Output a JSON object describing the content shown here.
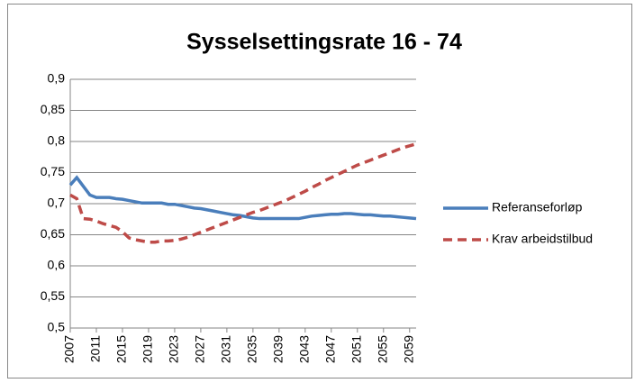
{
  "chart_data": {
    "type": "line",
    "title": "Sysselsettingsrate 16 - 74",
    "x": [
      2007,
      2008,
      2009,
      2010,
      2011,
      2012,
      2013,
      2014,
      2015,
      2016,
      2017,
      2018,
      2019,
      2020,
      2021,
      2022,
      2023,
      2024,
      2025,
      2026,
      2027,
      2028,
      2029,
      2030,
      2031,
      2032,
      2033,
      2034,
      2035,
      2036,
      2037,
      2038,
      2039,
      2040,
      2041,
      2042,
      2043,
      2044,
      2045,
      2046,
      2047,
      2048,
      2049,
      2050,
      2051,
      2052,
      2053,
      2054,
      2055,
      2056,
      2057,
      2058,
      2059,
      2060
    ],
    "series": [
      {
        "name": "Referanseforløp",
        "color": "#4a7ebb",
        "dash": false,
        "values": [
          0.73,
          0.742,
          0.728,
          0.714,
          0.71,
          0.71,
          0.71,
          0.708,
          0.707,
          0.705,
          0.703,
          0.701,
          0.701,
          0.701,
          0.701,
          0.699,
          0.699,
          0.697,
          0.695,
          0.693,
          0.692,
          0.69,
          0.688,
          0.686,
          0.684,
          0.682,
          0.681,
          0.679,
          0.677,
          0.676,
          0.676,
          0.676,
          0.676,
          0.676,
          0.676,
          0.676,
          0.678,
          0.68,
          0.681,
          0.682,
          0.683,
          0.683,
          0.684,
          0.684,
          0.683,
          0.682,
          0.682,
          0.681,
          0.68,
          0.68,
          0.679,
          0.678,
          0.677,
          0.676
        ]
      },
      {
        "name": "Krav arbeidstilbud",
        "color": "#be4b48",
        "dash": true,
        "values": [
          0.714,
          0.708,
          0.676,
          0.675,
          0.672,
          0.668,
          0.665,
          0.662,
          0.655,
          0.645,
          0.642,
          0.64,
          0.638,
          0.638,
          0.64,
          0.64,
          0.641,
          0.643,
          0.646,
          0.65,
          0.654,
          0.658,
          0.662,
          0.666,
          0.67,
          0.674,
          0.678,
          0.682,
          0.686,
          0.689,
          0.693,
          0.697,
          0.701,
          0.705,
          0.71,
          0.715,
          0.72,
          0.726,
          0.731,
          0.737,
          0.742,
          0.747,
          0.752,
          0.757,
          0.762,
          0.766,
          0.77,
          0.774,
          0.778,
          0.782,
          0.786,
          0.79,
          0.793,
          0.796
        ]
      }
    ],
    "xlim": [
      2007,
      2060
    ],
    "xticks": [
      2007,
      2011,
      2015,
      2019,
      2023,
      2027,
      2031,
      2035,
      2039,
      2043,
      2047,
      2051,
      2055,
      2059
    ],
    "ylim": [
      0.5,
      0.9
    ],
    "yticks": [
      {
        "value": 0.5,
        "label": "0,5"
      },
      {
        "value": 0.55,
        "label": "0,55"
      },
      {
        "value": 0.6,
        "label": "0,6"
      },
      {
        "value": 0.65,
        "label": "0,65"
      },
      {
        "value": 0.7,
        "label": "0,7"
      },
      {
        "value": 0.75,
        "label": "0,75"
      },
      {
        "value": 0.8,
        "label": "0,8"
      },
      {
        "value": 0.85,
        "label": "0,85"
      },
      {
        "value": 0.9,
        "label": "0,9"
      }
    ],
    "grid": true,
    "legend": "right"
  }
}
